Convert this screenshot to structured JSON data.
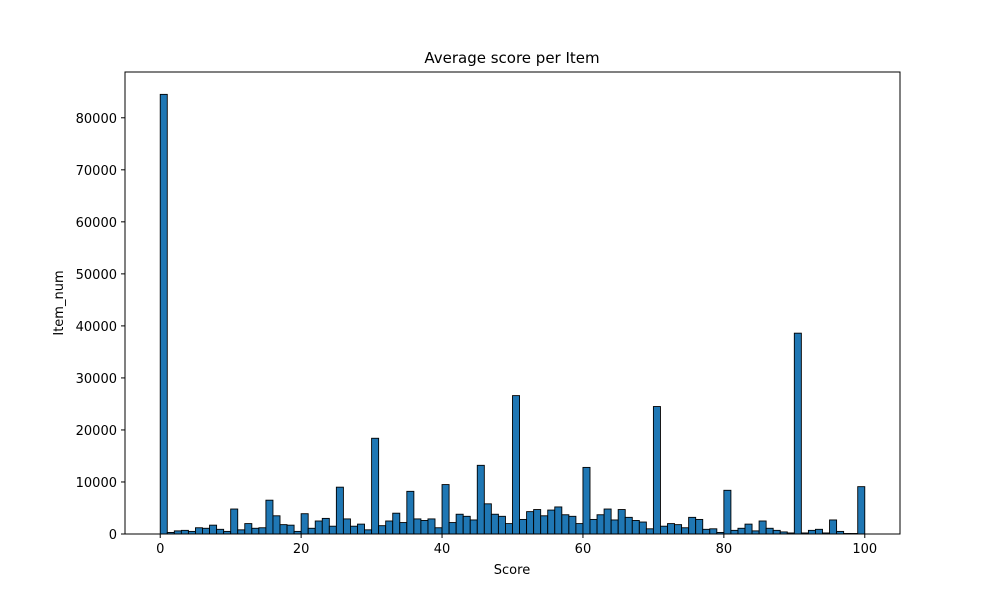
{
  "chart_data": {
    "type": "bar",
    "title": "Average score per Item",
    "xlabel": "Score",
    "ylabel": "Item_num",
    "xlim": [
      -5,
      105
    ],
    "ylim": [
      0,
      88800
    ],
    "xticks": [
      0,
      20,
      40,
      60,
      80,
      100
    ],
    "yticks": [
      0,
      10000,
      20000,
      30000,
      40000,
      50000,
      60000,
      70000,
      80000
    ],
    "bin_width": 1,
    "grid": false,
    "bar_color": "#1f77b4",
    "edge_color": "#000000",
    "x": [
      0,
      1,
      2,
      3,
      4,
      5,
      6,
      7,
      8,
      9,
      10,
      11,
      12,
      13,
      14,
      15,
      16,
      17,
      18,
      19,
      20,
      21,
      22,
      23,
      24,
      25,
      26,
      27,
      28,
      29,
      30,
      31,
      32,
      33,
      34,
      35,
      36,
      37,
      38,
      39,
      40,
      41,
      42,
      43,
      44,
      45,
      46,
      47,
      48,
      49,
      50,
      51,
      52,
      53,
      54,
      55,
      56,
      57,
      58,
      59,
      60,
      61,
      62,
      63,
      64,
      65,
      66,
      67,
      68,
      69,
      70,
      71,
      72,
      73,
      74,
      75,
      76,
      77,
      78,
      79,
      80,
      81,
      82,
      83,
      84,
      85,
      86,
      87,
      88,
      89,
      90,
      91,
      92,
      93,
      94,
      95,
      96,
      97,
      98,
      99
    ],
    "values": [
      84500,
      300,
      600,
      700,
      500,
      1200,
      1100,
      1700,
      900,
      500,
      4800,
      800,
      2000,
      1100,
      1200,
      6500,
      3500,
      1800,
      1700,
      500,
      3900,
      1100,
      2500,
      3000,
      1500,
      9000,
      2900,
      1500,
      1900,
      800,
      18400,
      1600,
      2500,
      4000,
      2200,
      8200,
      2900,
      2600,
      2900,
      1200,
      9500,
      2200,
      3800,
      3400,
      2700,
      13200,
      5800,
      3800,
      3400,
      2000,
      26600,
      2800,
      4300,
      4700,
      3500,
      4600,
      5200,
      3700,
      3400,
      2000,
      12800,
      2800,
      3700,
      4800,
      2700,
      4700,
      3200,
      2600,
      2300,
      1000,
      24500,
      1500,
      2000,
      1800,
      1200,
      3200,
      2800,
      900,
      1000,
      300,
      8400,
      700,
      1100,
      1900,
      600,
      2500,
      1100,
      700,
      400,
      200,
      38600,
      200,
      700,
      900,
      200,
      2700,
      500,
      100,
      100,
      9100
    ]
  }
}
